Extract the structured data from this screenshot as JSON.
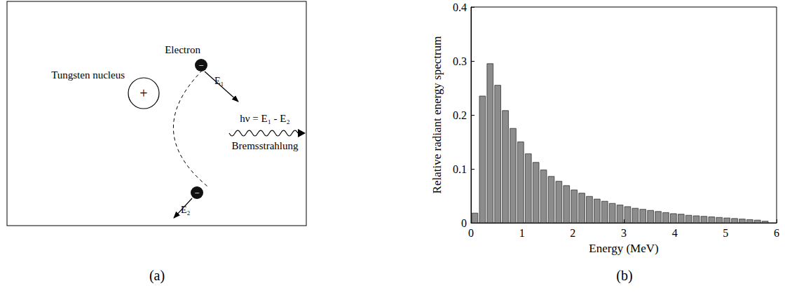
{
  "panels": [
    "(a)",
    "(b)"
  ],
  "diagram": {
    "nucleus_label": "Tungsten nucleus",
    "nucleus_sign": "+",
    "electron_label": "Electron",
    "electron_sign": "−",
    "initial_energy_label": "E₁",
    "final_energy_label": "E₂",
    "photon_label": "hν = E₁ - E₂",
    "radiation_label": "Bremsstrahlung"
  },
  "chart_data": {
    "type": "histogram",
    "x_label": "Energy (MeV)",
    "y_label": "Relative radiant energy spectrum",
    "bins": [
      0,
      0.15,
      0.3,
      0.45,
      0.6,
      0.75,
      0.9,
      1.05,
      1.2,
      1.35,
      1.5,
      1.65,
      1.8,
      1.95,
      2.1,
      2.25,
      2.4,
      2.55,
      2.7,
      2.85,
      3.0,
      3.15,
      3.3,
      3.45,
      3.6,
      3.75,
      3.9,
      4.05,
      4.2,
      4.35,
      4.5,
      4.65,
      4.8,
      4.95,
      5.1,
      5.25,
      5.4,
      5.55,
      5.7,
      5.85
    ],
    "values": [
      0.018,
      0.235,
      0.295,
      0.255,
      0.208,
      0.175,
      0.15,
      0.128,
      0.112,
      0.098,
      0.086,
      0.077,
      0.069,
      0.061,
      0.055,
      0.049,
      0.044,
      0.04,
      0.036,
      0.033,
      0.03,
      0.027,
      0.025,
      0.023,
      0.021,
      0.019,
      0.017,
      0.016,
      0.014,
      0.013,
      0.012,
      0.011,
      0.01,
      0.009,
      0.008,
      0.007,
      0.006,
      0.005,
      0.003
    ],
    "color": "#8c8c8c",
    "xlim": [
      0,
      6
    ],
    "xticks": [
      0,
      1,
      2,
      3,
      4,
      5,
      6
    ],
    "ylim": [
      0,
      0.4
    ],
    "yticks": [
      0,
      0.1,
      0.2,
      0.3,
      0.4
    ],
    "grid": false
  }
}
